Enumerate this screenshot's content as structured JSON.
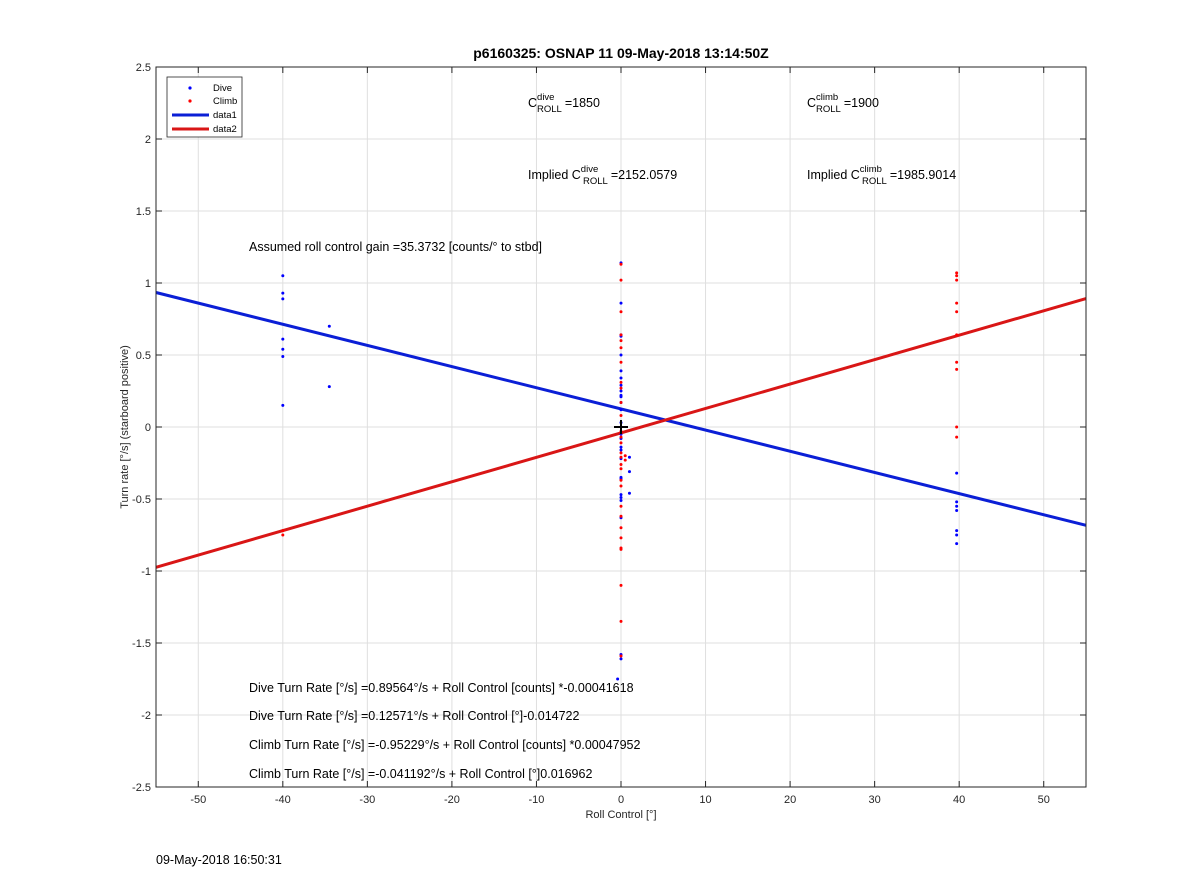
{
  "footer_timestamp": "09-May-2018 16:50:31",
  "chart_data": {
    "type": "scatter",
    "title": "p6160325: OSNAP 11 09-May-2018 13:14:50Z",
    "xlabel": "Roll Control [°]",
    "ylabel": "Turn rate [°/s] (starboard positive)",
    "xlim": [
      -55,
      55
    ],
    "ylim": [
      -2.5,
      2.5
    ],
    "xticks": [
      -50,
      -40,
      -30,
      -20,
      -10,
      0,
      10,
      20,
      30,
      40,
      50
    ],
    "yticks": [
      -2.5,
      -2,
      -1.5,
      -1,
      -0.5,
      0,
      0.5,
      1,
      1.5,
      2,
      2.5
    ],
    "grid": true,
    "legend_position": "top-left",
    "legend": [
      "Dive",
      "Climb",
      "data1",
      "data2"
    ],
    "colors": {
      "dive": "#0000ff",
      "climb": "#ff0000",
      "data1": "#0b1fd6",
      "data2": "#d91616"
    },
    "series": [
      {
        "name": "Dive",
        "mode": "markers",
        "color": "#0000ff",
        "points": [
          [
            -40,
            1.05
          ],
          [
            -40,
            0.93
          ],
          [
            -40,
            0.89
          ],
          [
            -40,
            0.61
          ],
          [
            -40,
            0.54
          ],
          [
            -40,
            0.49
          ],
          [
            -40,
            0.15
          ],
          [
            -34.5,
            0.7
          ],
          [
            -34.5,
            0.28
          ],
          [
            0,
            1.14
          ],
          [
            0,
            0.86
          ],
          [
            0,
            0.64
          ],
          [
            0,
            0.63
          ],
          [
            0,
            0.5
          ],
          [
            0,
            0.39
          ],
          [
            0,
            0.34
          ],
          [
            0,
            0.29
          ],
          [
            0,
            0.25
          ],
          [
            0,
            0.22
          ],
          [
            0,
            0.21
          ],
          [
            0,
            0.17
          ],
          [
            0,
            0.12
          ],
          [
            0,
            0.03
          ],
          [
            0,
            -0.05
          ],
          [
            0,
            -0.08
          ],
          [
            0,
            -0.14
          ],
          [
            0,
            -0.16
          ],
          [
            0,
            -0.22
          ],
          [
            0,
            -0.35
          ],
          [
            0,
            -0.36
          ],
          [
            0,
            -0.47
          ],
          [
            0,
            -0.49
          ],
          [
            0,
            -0.51
          ],
          [
            0,
            -0.63
          ],
          [
            0,
            -1.58
          ],
          [
            0,
            -1.61
          ],
          [
            -0.4,
            -1.75
          ],
          [
            1.0,
            -0.21
          ],
          [
            1.0,
            -0.31
          ],
          [
            1.0,
            -0.46
          ],
          [
            39.7,
            -0.32
          ],
          [
            39.7,
            -0.52
          ],
          [
            39.7,
            -0.55
          ],
          [
            39.7,
            -0.58
          ],
          [
            39.7,
            -0.72
          ],
          [
            39.7,
            -0.75
          ],
          [
            39.7,
            -0.81
          ]
        ]
      },
      {
        "name": "Climb",
        "mode": "markers",
        "color": "#ff0000",
        "points": [
          [
            -40,
            -0.72
          ],
          [
            -40,
            -0.75
          ],
          [
            0,
            1.13
          ],
          [
            0,
            1.02
          ],
          [
            0,
            0.8
          ],
          [
            0,
            0.64
          ],
          [
            0,
            0.6
          ],
          [
            0,
            0.55
          ],
          [
            0,
            0.45
          ],
          [
            0,
            0.31
          ],
          [
            0,
            0.27
          ],
          [
            0,
            0.17
          ],
          [
            0,
            0.08
          ],
          [
            0,
            -0.03
          ],
          [
            0,
            -0.04
          ],
          [
            0,
            -0.07
          ],
          [
            0,
            -0.11
          ],
          [
            0,
            -0.18
          ],
          [
            0,
            -0.21
          ],
          [
            0,
            -0.26
          ],
          [
            0,
            -0.29
          ],
          [
            0,
            -0.37
          ],
          [
            0,
            -0.41
          ],
          [
            0,
            -0.55
          ],
          [
            0,
            -0.62
          ],
          [
            0,
            -0.7
          ],
          [
            0,
            -0.77
          ],
          [
            0,
            -0.84
          ],
          [
            0,
            -0.85
          ],
          [
            0,
            -1.1
          ],
          [
            0,
            -1.35
          ],
          [
            0,
            -1.59
          ],
          [
            0.5,
            -0.2
          ],
          [
            0.5,
            -0.23
          ],
          [
            39.7,
            1.07
          ],
          [
            39.7,
            1.05
          ],
          [
            39.7,
            1.02
          ],
          [
            39.7,
            0.86
          ],
          [
            39.7,
            0.8
          ],
          [
            39.7,
            0.64
          ],
          [
            39.7,
            0.45
          ],
          [
            39.7,
            0.4
          ],
          [
            39.7,
            0.0
          ],
          [
            39.7,
            -0.07
          ]
        ]
      },
      {
        "name": "data1",
        "mode": "line",
        "color": "#0b1fd6",
        "points": [
          [
            -55,
            0.934
          ],
          [
            55,
            -0.683
          ]
        ]
      },
      {
        "name": "data2",
        "mode": "line",
        "color": "#d91616",
        "points": [
          [
            -55,
            -0.974
          ],
          [
            55,
            0.892
          ]
        ]
      }
    ],
    "origin_marker": {
      "x": 0,
      "y": 0,
      "symbol": "+"
    },
    "annotations": {
      "c_roll_dive": {
        "prefix": "C",
        "sup": "dive",
        "sub": "ROLL",
        "value": "=1850"
      },
      "c_roll_climb": {
        "prefix": "C",
        "sup": "climb",
        "sub": "ROLL",
        "value": "=1900"
      },
      "implied_dive": {
        "prefix": "Implied C",
        "sup": "dive",
        "sub": "ROLL",
        "value": "=2152.0579"
      },
      "implied_climb": {
        "prefix": "Implied C",
        "sup": "climb",
        "sub": "ROLL",
        "value": "=1985.9014"
      },
      "gain": "Assumed roll control gain =35.3732 [counts/° to stbd]",
      "equations": [
        "Dive Turn Rate [°/s] =0.89564°/s + Roll Control [counts] *-0.00041618",
        "Dive Turn Rate [°/s] =0.12571°/s + Roll Control [°]-0.014722",
        "Climb Turn Rate [°/s] =-0.95229°/s + Roll Control [counts] *0.00047952",
        "Climb Turn Rate [°/s] =-0.041192°/s + Roll Control [°]0.016962"
      ]
    }
  }
}
